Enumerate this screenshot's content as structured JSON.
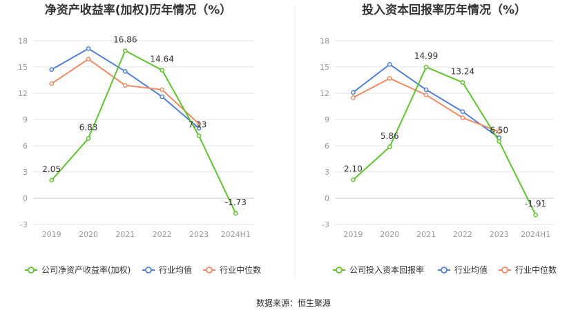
{
  "source": "数据来源：恒生聚源",
  "colors": {
    "company": "#5ec42c",
    "avg": "#4f7fdb",
    "median": "#ef8a62",
    "grid": "#e6e6e6",
    "axis": "#c9c9c9"
  },
  "chart_data": [
    {
      "type": "line",
      "title": "净资产收益率(加权)历年情况（%）",
      "categories": [
        "2019",
        "2020",
        "2021",
        "2022",
        "2023",
        "2024H1"
      ],
      "ylim": [
        -3,
        18
      ],
      "yticks": [
        "18",
        "15",
        "12",
        "9",
        "6",
        "3",
        "0",
        "-3"
      ],
      "legend_position": "bottom",
      "series": [
        {
          "name": "公司净资产收益率(加权)",
          "role": "company",
          "values": [
            2.05,
            6.83,
            16.86,
            14.64,
            7.13,
            -1.73
          ],
          "labels": [
            "2.05",
            "6.83",
            "16.86",
            "14.64",
            "7.13",
            "-1.73"
          ]
        },
        {
          "name": "行业均值",
          "role": "avg",
          "values": [
            14.7,
            17.1,
            14.5,
            11.6,
            8.0,
            null
          ]
        },
        {
          "name": "行业中位数",
          "role": "median",
          "values": [
            13.1,
            15.9,
            12.9,
            12.4,
            8.5,
            null
          ]
        }
      ]
    },
    {
      "type": "line",
      "title": "投入资本回报率历年情况（%）",
      "categories": [
        "2019",
        "2020",
        "2021",
        "2022",
        "2023",
        "2024H1"
      ],
      "ylim": [
        -3,
        18
      ],
      "yticks": [
        "18",
        "15",
        "12",
        "9",
        "6",
        "3",
        "0",
        "-3"
      ],
      "legend_position": "bottom",
      "series": [
        {
          "name": "公司投入资本回报率",
          "role": "company",
          "values": [
            2.1,
            5.86,
            14.99,
            13.24,
            6.5,
            -1.91
          ],
          "labels": [
            "2.10",
            "5.86",
            "14.99",
            "13.24",
            "6.50",
            "-1.91"
          ]
        },
        {
          "name": "行业均值",
          "role": "avg",
          "values": [
            12.1,
            15.3,
            12.4,
            9.9,
            6.9,
            null
          ]
        },
        {
          "name": "行业中位数",
          "role": "median",
          "values": [
            11.5,
            13.7,
            11.8,
            9.2,
            7.6,
            null
          ]
        }
      ]
    }
  ]
}
